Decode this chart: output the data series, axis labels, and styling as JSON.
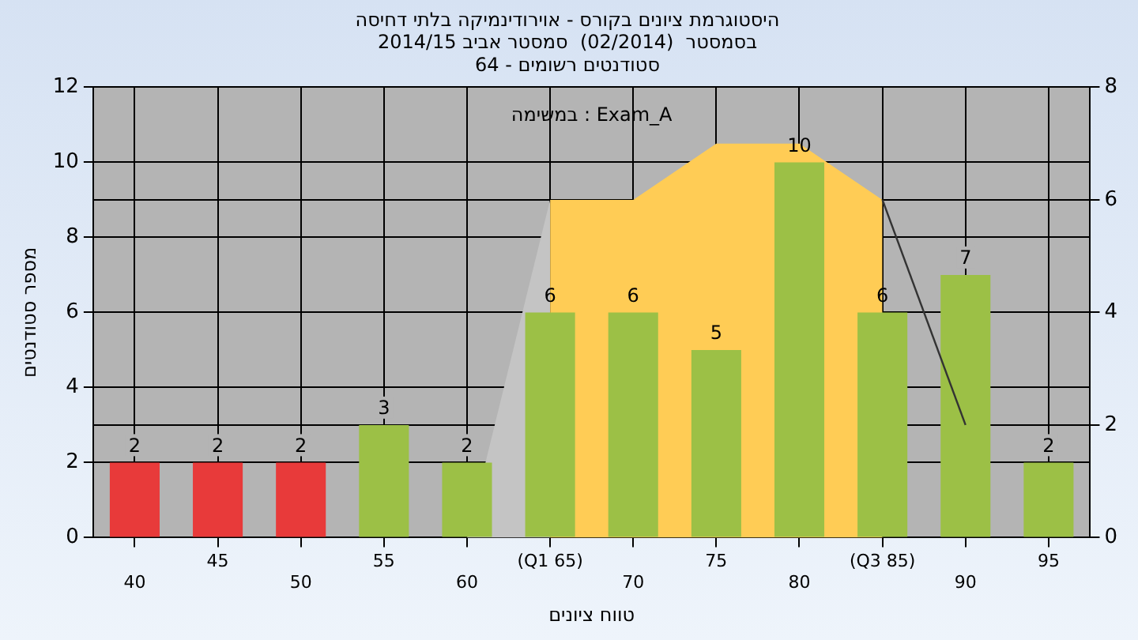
{
  "chart_data": {
    "type": "bar",
    "title": "היסטוגרמת ציונים בקורס - אוירודינמיקה בלתי דחיסה",
    "subtitle": "בסמסטר  (02/2014)  סמסטר אביב 2014/15\nסטודנטים רשומים - 64",
    "xlabel": "טווח ציונים",
    "ylabel": "מספר סטודנטים",
    "annotations": [
      "במשימה : Exam_A"
    ],
    "categories": [
      "40",
      "45",
      "50",
      "55",
      "60",
      "(Q1 65)",
      "70",
      "75",
      "80",
      "(Q3 85)",
      "90",
      "95"
    ],
    "series": [
      {
        "values": [
          2,
          2,
          2,
          3,
          2,
          6,
          6,
          5,
          10,
          6,
          7,
          2
        ],
        "value_labels": [
          "2",
          "2",
          "2",
          "3",
          "2",
          "6",
          "6",
          "5",
          "10",
          "6",
          "7",
          "2"
        ],
        "colors": [
          "#e83a3a",
          "#e83a3a",
          "#e83a3a",
          "#9cc046",
          "#9cc046",
          "#9cc046",
          "#9cc046",
          "#9cc046",
          "#9cc046",
          "#9cc046",
          "#9cc046",
          "#9cc046"
        ]
      },
      {
        "type": "area",
        "axis": "y2",
        "color": "#ffcc55",
        "values": [
          null,
          null,
          null,
          null,
          null,
          6,
          6,
          7,
          7,
          6,
          null,
          null
        ]
      },
      {
        "type": "area",
        "axis": "y2",
        "color": "#c4c4c4",
        "values": [
          null,
          null,
          null,
          null,
          0,
          6,
          null,
          null,
          null,
          null,
          null,
          null
        ]
      },
      {
        "type": "line",
        "axis": "y2",
        "color": "#333333",
        "values": [
          null,
          null,
          null,
          null,
          null,
          null,
          null,
          null,
          null,
          6,
          2,
          null
        ]
      }
    ],
    "grid": true,
    "legend": false,
    "ylim": [
      0,
      12
    ],
    "yticks": [
      0,
      2,
      4,
      6,
      8,
      10,
      12
    ],
    "y2lim": [
      0,
      8
    ],
    "y2ticks": [
      0,
      2,
      4,
      6,
      8
    ]
  }
}
